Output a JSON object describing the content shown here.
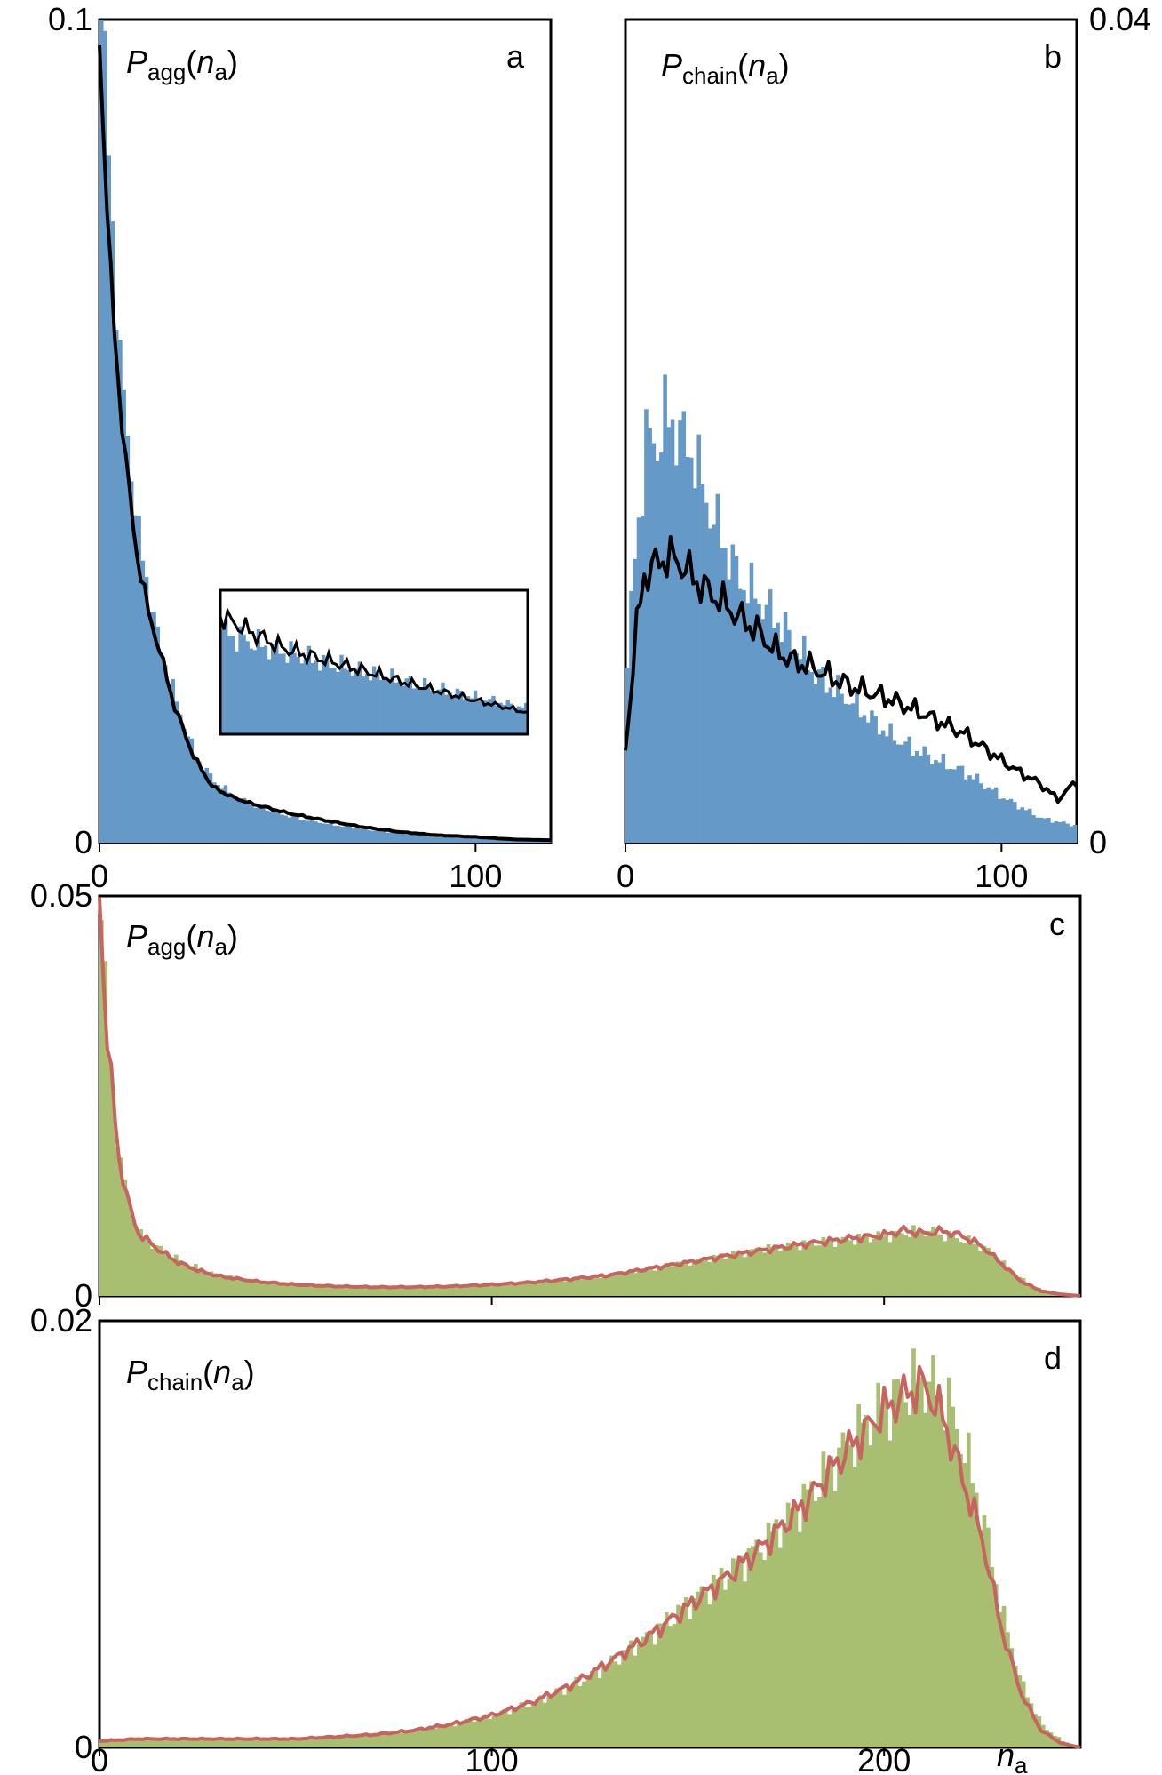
{
  "colors": {
    "histogram_blue": "#6499c8",
    "histogram_green": "#a8be70",
    "line_black": "#000000",
    "line_red": "#c8645f"
  },
  "chart_data": [
    {
      "panel": "a",
      "type": "bar",
      "ylabel_main": "P",
      "ylabel_sub": "agg",
      "ylabel_arg_main": "n",
      "ylabel_arg_sub": "a",
      "xlim": [
        0,
        120
      ],
      "ylim": [
        0,
        0.1
      ],
      "xticks": [
        0,
        100
      ],
      "yticks": [
        0,
        0.1
      ],
      "xtick_labels": [
        "0",
        "100"
      ],
      "ytick_labels": [
        "0",
        "0.1"
      ],
      "histogram": {
        "bin_width": 1,
        "x": [
          0,
          5,
          10,
          15,
          20,
          25,
          30,
          35,
          40,
          50,
          60,
          70,
          80,
          90,
          100,
          110,
          120
        ],
        "y": [
          0.102,
          0.058,
          0.037,
          0.025,
          0.017,
          0.0105,
          0.0075,
          0.0058,
          0.0046,
          0.0032,
          0.0023,
          0.0016,
          0.0011,
          0.0007,
          0.0005,
          0.0003,
          0.0002
        ]
      },
      "line": {
        "x": [
          0,
          1,
          3,
          5,
          8,
          10,
          13,
          15,
          20,
          25,
          30,
          35,
          40,
          50,
          60,
          70,
          80,
          90,
          100,
          110,
          120
        ],
        "y": [
          0.097,
          0.088,
          0.068,
          0.056,
          0.042,
          0.035,
          0.028,
          0.025,
          0.0165,
          0.0105,
          0.0068,
          0.0056,
          0.0048,
          0.0036,
          0.0027,
          0.0019,
          0.0013,
          0.0009,
          0.0007,
          0.0004,
          0.0003
        ]
      },
      "inset": {
        "x_range": [
          35,
          120
        ],
        "hist_y_top": [
          0.73,
          0.36
        ],
        "line_y_top": [
          0.82,
          0.6,
          0.48,
          0.36,
          0.25,
          0.15
        ]
      }
    },
    {
      "panel": "b",
      "type": "bar",
      "ylabel_main": "P",
      "ylabel_sub": "chain",
      "ylabel_arg_main": "n",
      "ylabel_arg_sub": "a",
      "xlim": [
        0,
        120
      ],
      "ylim": [
        0,
        0.04
      ],
      "xticks": [
        0,
        100
      ],
      "yticks": [
        0,
        0.04
      ],
      "xtick_labels": [
        "0",
        "100"
      ],
      "ytick_labels": [
        "0",
        "0.04"
      ],
      "histogram": {
        "bin_width": 1,
        "x": [
          0,
          2,
          5,
          8,
          10,
          12,
          15,
          18,
          20,
          25,
          30,
          35,
          40,
          50,
          60,
          70,
          80,
          90,
          100,
          110,
          120
        ],
        "y": [
          0.0085,
          0.014,
          0.0195,
          0.0195,
          0.0205,
          0.0205,
          0.0195,
          0.0188,
          0.0172,
          0.0148,
          0.0128,
          0.0118,
          0.0108,
          0.0082,
          0.0068,
          0.0052,
          0.0042,
          0.0034,
          0.0022,
          0.0012,
          0.0008
        ]
      },
      "line": {
        "x": [
          0,
          3,
          5,
          8,
          10,
          13,
          15,
          20,
          25,
          30,
          35,
          40,
          45,
          50,
          55,
          60,
          70,
          80,
          90,
          100,
          105,
          110,
          115,
          120
        ],
        "y": [
          0.0045,
          0.0105,
          0.013,
          0.0135,
          0.0138,
          0.0138,
          0.0135,
          0.0125,
          0.0118,
          0.011,
          0.0103,
          0.0093,
          0.0088,
          0.0085,
          0.008,
          0.0076,
          0.007,
          0.0062,
          0.0053,
          0.004,
          0.0034,
          0.0029,
          0.0021,
          0.003
        ]
      }
    },
    {
      "panel": "c",
      "type": "bar",
      "ylabel_main": "P",
      "ylabel_sub": "agg",
      "ylabel_arg_main": "n",
      "ylabel_arg_sub": "a",
      "xlim": [
        0,
        250
      ],
      "ylim": [
        0,
        0.05
      ],
      "xticks": [
        0,
        100,
        200
      ],
      "yticks": [
        0,
        0.05
      ],
      "ytick_labels": [
        "0",
        "0.05"
      ],
      "histogram": {
        "bin_width": 1,
        "x": [
          0,
          2,
          5,
          8,
          10,
          15,
          20,
          25,
          30,
          40,
          50,
          60,
          70,
          80,
          90,
          100,
          110,
          120,
          130,
          140,
          150,
          160,
          170,
          180,
          190,
          200,
          205,
          210,
          215,
          220,
          225,
          230,
          235,
          240,
          245,
          250
        ],
        "y": [
          0.047,
          0.03,
          0.016,
          0.01,
          0.0075,
          0.0058,
          0.0044,
          0.0034,
          0.0025,
          0.0018,
          0.0014,
          0.0012,
          0.0011,
          0.0011,
          0.0012,
          0.0014,
          0.0017,
          0.0021,
          0.0027,
          0.0035,
          0.0043,
          0.0052,
          0.006,
          0.0066,
          0.007,
          0.0075,
          0.0079,
          0.0082,
          0.0076,
          0.007,
          0.006,
          0.004,
          0.002,
          0.0007,
          0.0002,
          0.0
        ]
      },
      "line": {
        "x": [
          0,
          2,
          5,
          8,
          10,
          15,
          20,
          25,
          30,
          40,
          50,
          60,
          70,
          80,
          90,
          100,
          110,
          120,
          130,
          140,
          150,
          160,
          170,
          180,
          190,
          200,
          205,
          210,
          215,
          220,
          225,
          230,
          235,
          240,
          245,
          250
        ],
        "y": [
          0.05,
          0.032,
          0.017,
          0.0105,
          0.0078,
          0.0058,
          0.0042,
          0.0032,
          0.0025,
          0.0018,
          0.0014,
          0.0012,
          0.0011,
          0.0011,
          0.0012,
          0.0014,
          0.0017,
          0.0021,
          0.0026,
          0.0034,
          0.0042,
          0.005,
          0.0058,
          0.0065,
          0.0071,
          0.0076,
          0.0082,
          0.0078,
          0.0081,
          0.0075,
          0.0062,
          0.004,
          0.0018,
          0.0006,
          0.0002,
          0.0
        ]
      }
    },
    {
      "panel": "d",
      "type": "bar",
      "ylabel_main": "P",
      "ylabel_sub": "chain",
      "ylabel_arg_main": "n",
      "ylabel_arg_sub": "a",
      "xlim": [
        0,
        250
      ],
      "ylim": [
        0,
        0.02
      ],
      "xticks": [
        0,
        100,
        200
      ],
      "yticks": [
        0,
        0.02
      ],
      "xtick_labels": [
        "0",
        "100",
        "200"
      ],
      "ytick_labels": [
        "0",
        "0.02"
      ],
      "xlabel_main": "n",
      "xlabel_sub": "a",
      "histogram": {
        "bin_width": 1,
        "x": [
          0,
          10,
          20,
          30,
          40,
          50,
          60,
          70,
          80,
          90,
          100,
          110,
          120,
          130,
          140,
          150,
          160,
          170,
          180,
          190,
          195,
          200,
          205,
          210,
          215,
          220,
          225,
          230,
          235,
          240,
          245,
          250
        ],
        "y": [
          0.0003,
          0.0004,
          0.0004,
          0.0004,
          0.0004,
          0.0004,
          0.0005,
          0.0006,
          0.0008,
          0.0011,
          0.0015,
          0.0021,
          0.0029,
          0.004,
          0.0053,
          0.0068,
          0.0082,
          0.0098,
          0.0118,
          0.0142,
          0.0152,
          0.016,
          0.0168,
          0.0172,
          0.0165,
          0.014,
          0.0105,
          0.006,
          0.0028,
          0.001,
          0.0003,
          0.0
        ]
      },
      "line": {
        "x": [
          0,
          10,
          20,
          30,
          40,
          50,
          60,
          70,
          80,
          90,
          100,
          110,
          120,
          130,
          140,
          150,
          160,
          170,
          180,
          190,
          195,
          200,
          205,
          210,
          215,
          220,
          225,
          230,
          235,
          240,
          245,
          250
        ],
        "y": [
          0.0003,
          0.0004,
          0.0004,
          0.0004,
          0.0004,
          0.0004,
          0.0005,
          0.0006,
          0.0008,
          0.0011,
          0.0015,
          0.0021,
          0.0029,
          0.004,
          0.0052,
          0.0066,
          0.008,
          0.0096,
          0.0115,
          0.0138,
          0.0148,
          0.0158,
          0.0165,
          0.017,
          0.0155,
          0.0126,
          0.0098,
          0.0055,
          0.0025,
          0.0008,
          0.0002,
          0.0
        ]
      }
    }
  ]
}
